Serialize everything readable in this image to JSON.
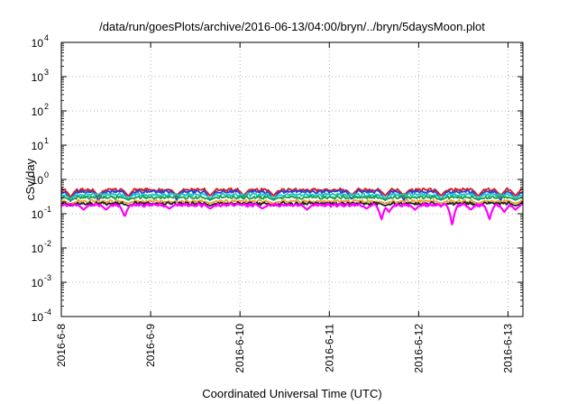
{
  "chart_data": {
    "type": "line",
    "title": "/data/run/goesPlots/archive/2016-06-13/04:00/bryn/../bryn/5daysMoon.plot",
    "xlabel": "Coordinated Universal Time (UTC)",
    "ylabel": "cSv/day",
    "y_scale": "log",
    "ylim": [
      0.0001,
      10000
    ],
    "y_ticks": [
      {
        "value": 0.0001,
        "base": "10",
        "exp": "-4"
      },
      {
        "value": 0.001,
        "base": "10",
        "exp": "-3"
      },
      {
        "value": 0.01,
        "base": "10",
        "exp": "-2"
      },
      {
        "value": 0.1,
        "base": "10",
        "exp": "-1"
      },
      {
        "value": 1,
        "base": "10",
        "exp": "0"
      },
      {
        "value": 10,
        "base": "10",
        "exp": "1"
      },
      {
        "value": 100,
        "base": "10",
        "exp": "2"
      },
      {
        "value": 1000,
        "base": "10",
        "exp": "3"
      },
      {
        "value": 10000,
        "base": "10",
        "exp": "4"
      }
    ],
    "x_ticks": [
      "2016-6-8",
      "2016-6-9",
      "2016-6-10",
      "2016-6-11",
      "2016-6-12",
      "2016-6-13"
    ],
    "xlim": [
      "2016-06-08T00:00",
      "2016-06-13T04:00"
    ],
    "grid": true,
    "series": [
      {
        "color": "#d81b1b",
        "level": 0.5,
        "dips": [
          [
            "2016-06-08T02:30",
            0.3
          ],
          [
            "2016-06-08T10:00",
            0.32
          ],
          [
            "2016-06-08T18:00",
            0.32
          ],
          [
            "2016-06-09T07:00",
            0.33
          ],
          [
            "2016-06-09T16:00",
            0.33
          ],
          [
            "2016-06-10T01:00",
            0.34
          ],
          [
            "2016-06-10T09:00",
            0.33
          ],
          [
            "2016-06-11T06:00",
            0.34
          ],
          [
            "2016-06-11T15:00",
            0.33
          ],
          [
            "2016-06-11T20:00",
            0.33
          ],
          [
            "2016-06-12T06:00",
            0.33
          ],
          [
            "2016-06-12T16:00",
            0.32
          ],
          [
            "2016-06-12T22:00",
            0.33
          ],
          [
            "2016-06-13T02:00",
            0.33
          ]
        ]
      },
      {
        "color": "#2f3fd6",
        "level": 0.44,
        "dips": [
          [
            "2016-06-08T02:30",
            0.23
          ],
          [
            "2016-06-08T10:00",
            0.24
          ],
          [
            "2016-06-08T18:00",
            0.25
          ],
          [
            "2016-06-09T07:00",
            0.25
          ],
          [
            "2016-06-09T16:00",
            0.24
          ],
          [
            "2016-06-10T01:00",
            0.26
          ],
          [
            "2016-06-10T09:00",
            0.25
          ],
          [
            "2016-06-11T06:00",
            0.26
          ],
          [
            "2016-06-11T15:00",
            0.24
          ],
          [
            "2016-06-11T20:00",
            0.25
          ],
          [
            "2016-06-12T06:00",
            0.25
          ],
          [
            "2016-06-12T16:00",
            0.24
          ],
          [
            "2016-06-12T22:00",
            0.24
          ],
          [
            "2016-06-13T02:00",
            0.25
          ]
        ]
      },
      {
        "color": "#19c7c7",
        "level": 0.36,
        "dips": [
          [
            "2016-06-08T02:30",
            0.27
          ],
          [
            "2016-06-08T18:00",
            0.28
          ],
          [
            "2016-06-09T16:00",
            0.28
          ],
          [
            "2016-06-10T09:00",
            0.28
          ],
          [
            "2016-06-11T15:00",
            0.28
          ],
          [
            "2016-06-12T06:00",
            0.28
          ],
          [
            "2016-06-12T16:00",
            0.28
          ],
          [
            "2016-06-13T02:00",
            0.28
          ]
        ]
      },
      {
        "color": "#1a9e4a",
        "level": 0.3,
        "dips": [
          [
            "2016-06-08T02:30",
            0.24
          ],
          [
            "2016-06-08T18:00",
            0.25
          ],
          [
            "2016-06-09T16:00",
            0.25
          ],
          [
            "2016-06-10T09:00",
            0.25
          ],
          [
            "2016-06-11T15:00",
            0.25
          ],
          [
            "2016-06-12T06:00",
            0.25
          ],
          [
            "2016-06-12T16:00",
            0.25
          ],
          [
            "2016-06-13T02:00",
            0.25
          ]
        ]
      },
      {
        "color": "#e8a23a",
        "level": 0.23,
        "dips": [
          [
            "2016-06-08T02:30",
            0.19
          ],
          [
            "2016-06-08T18:00",
            0.2
          ],
          [
            "2016-06-09T16:00",
            0.2
          ],
          [
            "2016-06-10T09:00",
            0.2
          ],
          [
            "2016-06-11T15:00",
            0.2
          ],
          [
            "2016-06-12T06:00",
            0.2
          ],
          [
            "2016-06-12T16:00",
            0.2
          ],
          [
            "2016-06-13T02:00",
            0.2
          ]
        ]
      },
      {
        "color": "#222222",
        "level": 0.2,
        "dips": [
          [
            "2016-06-08T02:30",
            0.17
          ],
          [
            "2016-06-08T18:00",
            0.17
          ],
          [
            "2016-06-09T16:00",
            0.17
          ],
          [
            "2016-06-10T09:00",
            0.17
          ],
          [
            "2016-06-11T15:00",
            0.17
          ],
          [
            "2016-06-12T06:00",
            0.17
          ],
          [
            "2016-06-12T16:00",
            0.17
          ],
          [
            "2016-06-13T02:00",
            0.17
          ]
        ]
      },
      {
        "color": "#ff00ff",
        "level": 0.18,
        "dips": [
          [
            "2016-06-08T06:00",
            0.13
          ],
          [
            "2016-06-08T12:00",
            0.13
          ],
          [
            "2016-06-08T17:00",
            0.08
          ],
          [
            "2016-06-09T05:00",
            0.14
          ],
          [
            "2016-06-09T16:00",
            0.14
          ],
          [
            "2016-06-10T06:00",
            0.14
          ],
          [
            "2016-06-10T18:00",
            0.13
          ],
          [
            "2016-06-11T10:00",
            0.14
          ],
          [
            "2016-06-11T14:00",
            0.065
          ],
          [
            "2016-06-11T16:00",
            0.11
          ],
          [
            "2016-06-11T23:00",
            0.13
          ],
          [
            "2016-06-12T09:00",
            0.04
          ],
          [
            "2016-06-12T14:00",
            0.13
          ],
          [
            "2016-06-12T19:00",
            0.065
          ],
          [
            "2016-06-12T23:00",
            0.11
          ],
          [
            "2016-06-13T02:00",
            0.13
          ]
        ]
      }
    ]
  }
}
